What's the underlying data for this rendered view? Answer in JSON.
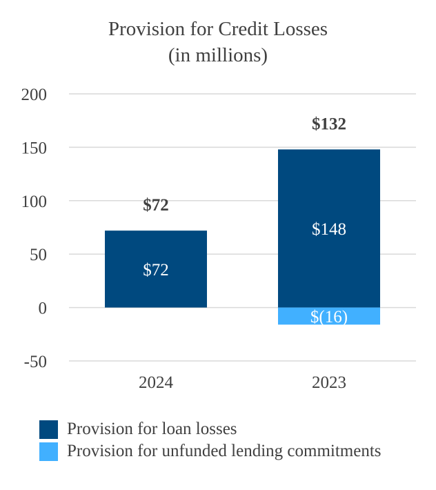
{
  "chart_data": {
    "type": "bar",
    "stacked": true,
    "title": "Provision for Credit Losses",
    "subtitle": "(in millions)",
    "categories": [
      "2024",
      "2023"
    ],
    "series": [
      {
        "name": "Provision for loan losses",
        "values": [
          72,
          148
        ],
        "labels": [
          "$72",
          "$148"
        ],
        "color": "#00497f"
      },
      {
        "name": "Provision for unfunded lending commitments",
        "values": [
          0,
          -16
        ],
        "labels": [
          "",
          "$(16)"
        ],
        "color": "#41b0ff"
      }
    ],
    "totals": [
      "$72",
      "$132"
    ],
    "ylim": [
      -50,
      200
    ],
    "yticks": [
      "-50",
      "0",
      "50",
      "100",
      "150",
      "200"
    ],
    "ytick_values": [
      -50,
      0,
      50,
      100,
      150,
      200
    ],
    "grid": true,
    "legend_position": "bottom-left",
    "xlabel": "",
    "ylabel": ""
  }
}
